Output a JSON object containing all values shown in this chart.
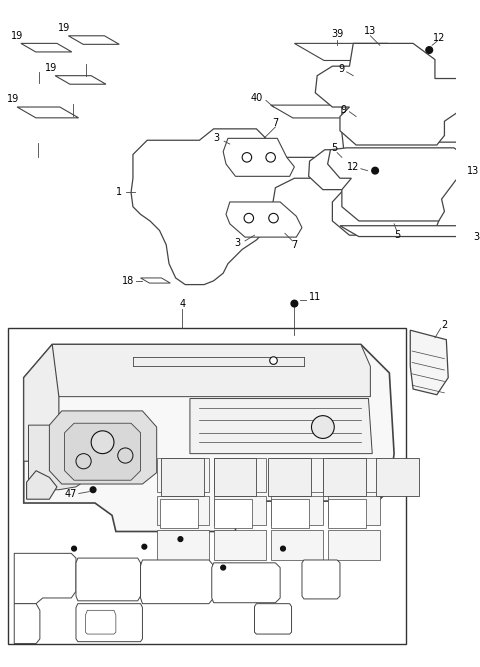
{
  "background_color": "#ffffff",
  "figure_width": 4.8,
  "figure_height": 6.67,
  "dpi": 100,
  "ec": "#444444",
  "lw": 0.8
}
